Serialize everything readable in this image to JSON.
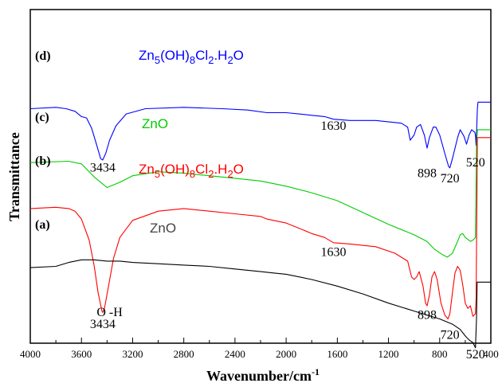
{
  "chart_data": {
    "type": "line",
    "xlabel": "Wavenumber/cm",
    "xlabel_sup": "-1",
    "ylabel": "Transmittance",
    "xlim": [
      4000,
      400
    ],
    "x_ticks": [
      4000,
      3600,
      3200,
      2800,
      2400,
      2000,
      1600,
      1200,
      800,
      400
    ],
    "x_reversed": true,
    "grid": false,
    "series": [
      {
        "name": "Zn5(OH)8Cl2.H2O",
        "tag": "(d)",
        "color": "#0000ff",
        "points": [
          [
            4000,
            90
          ],
          [
            3800,
            91
          ],
          [
            3720,
            90
          ],
          [
            3650,
            88
          ],
          [
            3600,
            84
          ],
          [
            3560,
            83
          ],
          [
            3520,
            75
          ],
          [
            3480,
            62
          ],
          [
            3450,
            52
          ],
          [
            3434,
            51
          ],
          [
            3410,
            56
          ],
          [
            3380,
            66
          ],
          [
            3330,
            77
          ],
          [
            3250,
            86
          ],
          [
            3100,
            90
          ],
          [
            2800,
            91
          ],
          [
            2500,
            90
          ],
          [
            2300,
            89
          ],
          [
            2150,
            87
          ],
          [
            2000,
            87
          ],
          [
            1900,
            86
          ],
          [
            1800,
            85
          ],
          [
            1700,
            84
          ],
          [
            1630,
            82
          ],
          [
            1500,
            81
          ],
          [
            1300,
            81
          ],
          [
            1100,
            79
          ],
          [
            1050,
            76
          ],
          [
            1030,
            66
          ],
          [
            1000,
            70
          ],
          [
            980,
            76
          ],
          [
            950,
            78
          ],
          [
            920,
            70
          ],
          [
            898,
            60
          ],
          [
            880,
            68
          ],
          [
            850,
            76
          ],
          [
            830,
            76
          ],
          [
            800,
            70
          ],
          [
            760,
            56
          ],
          [
            730,
            46
          ],
          [
            720,
            45
          ],
          [
            700,
            52
          ],
          [
            660,
            68
          ],
          [
            640,
            74
          ],
          [
            610,
            69
          ],
          [
            590,
            63
          ],
          [
            570,
            70
          ],
          [
            550,
            74
          ],
          [
            525,
            72
          ],
          [
            520,
            70
          ],
          [
            515,
            62
          ],
          [
            505,
            90
          ],
          [
            500,
            95
          ],
          [
            470,
            95
          ],
          [
            450,
            95
          ],
          [
            430,
            95
          ],
          [
            400,
            95
          ]
        ]
      },
      {
        "name": "ZnO",
        "tag": "(c)",
        "color": "#00cc00",
        "points": [
          [
            4000,
            49
          ],
          [
            3700,
            50
          ],
          [
            3600,
            48
          ],
          [
            3500,
            38
          ],
          [
            3400,
            30
          ],
          [
            3300,
            34
          ],
          [
            3200,
            39
          ],
          [
            3000,
            42
          ],
          [
            2800,
            41
          ],
          [
            2600,
            39
          ],
          [
            2400,
            37
          ],
          [
            2200,
            35
          ],
          [
            2100,
            33
          ],
          [
            2000,
            31
          ],
          [
            1800,
            26
          ],
          [
            1600,
            20
          ],
          [
            1400,
            11
          ],
          [
            1200,
            2
          ],
          [
            1000,
            -6
          ],
          [
            900,
            -11
          ],
          [
            840,
            -17
          ],
          [
            780,
            -21
          ],
          [
            740,
            -23
          ],
          [
            700,
            -20
          ],
          [
            660,
            -11
          ],
          [
            640,
            -6
          ],
          [
            620,
            -5
          ],
          [
            600,
            -8
          ],
          [
            560,
            -11
          ],
          [
            540,
            -10
          ],
          [
            520,
            -8
          ],
          [
            512,
            60
          ],
          [
            505,
            74
          ],
          [
            480,
            74
          ],
          [
            440,
            74
          ],
          [
            400,
            74
          ]
        ]
      },
      {
        "name": "Zn5(OH)8Cl2.H2O",
        "tag": "(b)",
        "color": "#ff0000",
        "points": [
          [
            4000,
            14
          ],
          [
            3800,
            15
          ],
          [
            3700,
            14
          ],
          [
            3650,
            12
          ],
          [
            3600,
            6
          ],
          [
            3540,
            -10
          ],
          [
            3500,
            -30
          ],
          [
            3470,
            -50
          ],
          [
            3440,
            -64
          ],
          [
            3434,
            -65
          ],
          [
            3420,
            -62
          ],
          [
            3390,
            -46
          ],
          [
            3350,
            -24
          ],
          [
            3300,
            -8
          ],
          [
            3200,
            5
          ],
          [
            3000,
            12
          ],
          [
            2800,
            14
          ],
          [
            2600,
            12
          ],
          [
            2400,
            10
          ],
          [
            2200,
            8
          ],
          [
            2150,
            6
          ],
          [
            2000,
            3
          ],
          [
            1900,
            -1
          ],
          [
            1800,
            -5
          ],
          [
            1700,
            -8
          ],
          [
            1630,
            -12
          ],
          [
            1500,
            -13
          ],
          [
            1300,
            -15
          ],
          [
            1150,
            -20
          ],
          [
            1050,
            -26
          ],
          [
            1020,
            -38
          ],
          [
            1000,
            -40
          ],
          [
            980,
            -38
          ],
          [
            960,
            -34
          ],
          [
            930,
            -45
          ],
          [
            910,
            -58
          ],
          [
            898,
            -60
          ],
          [
            880,
            -52
          ],
          [
            860,
            -38
          ],
          [
            840,
            -34
          ],
          [
            820,
            -40
          ],
          [
            790,
            -58
          ],
          [
            760,
            -67
          ],
          [
            735,
            -70
          ],
          [
            720,
            -66
          ],
          [
            700,
            -50
          ],
          [
            680,
            -35
          ],
          [
            660,
            -30
          ],
          [
            640,
            -33
          ],
          [
            620,
            -44
          ],
          [
            600,
            -58
          ],
          [
            580,
            -62
          ],
          [
            560,
            -60
          ],
          [
            540,
            -68
          ],
          [
            520,
            -66
          ],
          [
            515,
            -55
          ],
          [
            505,
            68
          ],
          [
            495,
            68
          ],
          [
            470,
            68
          ],
          [
            440,
            68
          ],
          [
            400,
            68
          ]
        ]
      },
      {
        "name": "ZnO",
        "tag": "(a)",
        "color": "#000000",
        "points": [
          [
            4000,
            -31
          ],
          [
            3800,
            -30
          ],
          [
            3700,
            -27
          ],
          [
            3600,
            -25
          ],
          [
            3500,
            -25
          ],
          [
            3400,
            -26
          ],
          [
            3300,
            -26
          ],
          [
            3200,
            -27
          ],
          [
            3000,
            -28
          ],
          [
            2800,
            -29
          ],
          [
            2600,
            -30
          ],
          [
            2400,
            -32
          ],
          [
            2200,
            -34
          ],
          [
            2100,
            -35
          ],
          [
            2000,
            -36
          ],
          [
            1800,
            -40
          ],
          [
            1600,
            -45
          ],
          [
            1400,
            -51
          ],
          [
            1200,
            -58
          ],
          [
            1000,
            -64
          ],
          [
            900,
            -67
          ],
          [
            800,
            -70
          ],
          [
            700,
            -74
          ],
          [
            640,
            -78
          ],
          [
            600,
            -83
          ],
          [
            570,
            -86
          ],
          [
            540,
            -88
          ],
          [
            520,
            -92
          ],
          [
            512,
            -70
          ],
          [
            507,
            -42
          ],
          [
            500,
            -42
          ],
          [
            470,
            -42
          ],
          [
            440,
            -42
          ],
          [
            400,
            -42
          ]
        ]
      }
    ],
    "tags": [
      "(d)",
      "(c)",
      "(b)",
      "(a)"
    ],
    "legend_labels": [
      {
        "series": 0,
        "base": "Zn",
        "sub1": "5",
        "mid": "(OH)",
        "sub2": "8",
        "mid2": "Cl",
        "sub3": "2",
        "end": ".H",
        "sub4": "2",
        "tail": "O"
      },
      {
        "series": 1,
        "text": "ZnO"
      },
      {
        "series": 2,
        "base": "Zn",
        "sub1": "5",
        "mid": "(OH)",
        "sub2": "8",
        "mid2": "Cl",
        "sub3": "2",
        "end": ".H",
        "sub4": "2",
        "tail": "O"
      },
      {
        "series": 3,
        "text": "ZnO"
      }
    ],
    "annotations": [
      {
        "text": "3434",
        "x": 3434,
        "y": 42,
        "anchor": "middle"
      },
      {
        "text": "1630",
        "x": 1630,
        "y": 74,
        "anchor": "middle"
      },
      {
        "text": "898",
        "x": 898,
        "y": 38,
        "anchor": "middle"
      },
      {
        "text": "720",
        "x": 720,
        "y": 34,
        "anchor": "middle"
      },
      {
        "text": "520",
        "x": 520,
        "y": 46,
        "anchor": "middle"
      },
      {
        "text": "1630",
        "x": 1630,
        "y": -22,
        "anchor": "middle"
      },
      {
        "text": "O -H",
        "x": 3380,
        "y": -68,
        "anchor": "middle"
      },
      {
        "text": "3434",
        "x": 3434,
        "y": -77,
        "anchor": "middle"
      },
      {
        "text": "898",
        "x": 898,
        "y": -70,
        "anchor": "middle"
      },
      {
        "text": "720",
        "x": 720,
        "y": -85,
        "anchor": "middle"
      },
      {
        "text": "520",
        "x": 520,
        "y": -100,
        "anchor": "middle"
      }
    ]
  }
}
